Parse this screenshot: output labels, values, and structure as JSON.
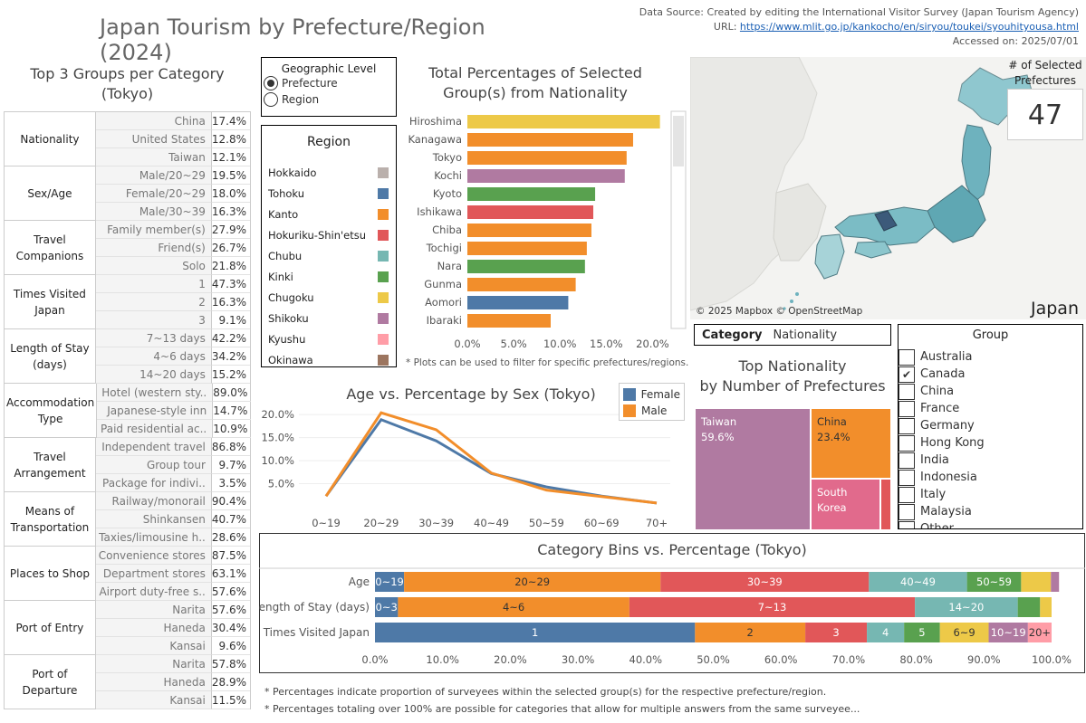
{
  "header": {
    "title": "Japan Tourism by Prefecture/Region (2024)",
    "source_line": "Data Source: Created by editing the International Visitor Survey (Japan Tourism Agency)",
    "url_label": "URL: ",
    "url": "https://www.mlit.go.jp/kankocho/en/siryou/toukei/syouhityousa.html",
    "accessed": "Accessed on: 2025/07/01"
  },
  "top3": {
    "title": "Top 3 Groups per Category",
    "subtitle": "(Tokyo)",
    "groups": [
      {
        "label": "Nationality",
        "rows": [
          {
            "name": "China",
            "value": "17.4%"
          },
          {
            "name": "United States",
            "value": "12.8%"
          },
          {
            "name": "Taiwan",
            "value": "12.1%"
          }
        ]
      },
      {
        "label": "Sex/Age",
        "rows": [
          {
            "name": "Male/20~29",
            "value": "19.5%"
          },
          {
            "name": "Female/20~29",
            "value": "18.0%"
          },
          {
            "name": "Male/30~39",
            "value": "16.3%"
          }
        ]
      },
      {
        "label": "Travel Companions",
        "rows": [
          {
            "name": "Family member(s)",
            "value": "27.9%"
          },
          {
            "name": "Friend(s)",
            "value": "26.7%"
          },
          {
            "name": "Solo",
            "value": "21.8%"
          }
        ]
      },
      {
        "label": "Times Visited Japan",
        "rows": [
          {
            "name": "1",
            "value": "47.3%"
          },
          {
            "name": "2",
            "value": "16.3%"
          },
          {
            "name": "3",
            "value": "9.1%"
          }
        ]
      },
      {
        "label": "Length of Stay (days)",
        "rows": [
          {
            "name": "7~13 days",
            "value": "42.2%"
          },
          {
            "name": "4~6 days",
            "value": "34.2%"
          },
          {
            "name": "14~20 days",
            "value": "15.2%"
          }
        ]
      },
      {
        "label": "Accommodation Type",
        "rows": [
          {
            "name": "Hotel (western sty..",
            "value": "89.0%"
          },
          {
            "name": "Japanese-style inn",
            "value": "14.7%"
          },
          {
            "name": "Paid residential ac..",
            "value": "10.9%"
          }
        ]
      },
      {
        "label": "Travel Arrangement",
        "rows": [
          {
            "name": "Independent travel",
            "value": "86.8%"
          },
          {
            "name": "Group tour",
            "value": "9.7%"
          },
          {
            "name": "Package for indivi..",
            "value": "3.5%"
          }
        ]
      },
      {
        "label": "Means of Transportation",
        "rows": [
          {
            "name": "Railway/monorail",
            "value": "90.4%"
          },
          {
            "name": "Shinkansen",
            "value": "40.7%"
          },
          {
            "name": "Taxies/limousine h..",
            "value": "28.6%"
          }
        ]
      },
      {
        "label": "Places to Shop",
        "rows": [
          {
            "name": "Convenience stores",
            "value": "87.5%"
          },
          {
            "name": "Department stores",
            "value": "63.1%"
          },
          {
            "name": "Airport duty-free s..",
            "value": "57.6%"
          }
        ]
      },
      {
        "label": "Port of Entry",
        "rows": [
          {
            "name": "Narita",
            "value": "57.6%"
          },
          {
            "name": "Haneda",
            "value": "30.4%"
          },
          {
            "name": "Kansai",
            "value": "9.6%"
          }
        ]
      },
      {
        "label": "Port of Departure",
        "rows": [
          {
            "name": "Narita",
            "value": "57.8%"
          },
          {
            "name": "Haneda",
            "value": "28.9%"
          },
          {
            "name": "Kansai",
            "value": "11.5%"
          }
        ]
      }
    ]
  },
  "geo_level": {
    "title": "Geographic Level",
    "options": [
      "Prefecture",
      "Region"
    ],
    "selected": "Prefecture"
  },
  "region_legend": {
    "title": "Region",
    "items": [
      {
        "name": "Hokkaido",
        "color": "#bab0ac"
      },
      {
        "name": "Tohoku",
        "color": "#4e79a7"
      },
      {
        "name": "Kanto",
        "color": "#f28e2b"
      },
      {
        "name": "Hokuriku-Shin'etsu",
        "color": "#e15759"
      },
      {
        "name": "Chubu",
        "color": "#76b7b2"
      },
      {
        "name": "Kinki",
        "color": "#59a14f"
      },
      {
        "name": "Chugoku",
        "color": "#edc948"
      },
      {
        "name": "Shikoku",
        "color": "#b07aa1"
      },
      {
        "name": "Kyushu",
        "color": "#ff9da7"
      },
      {
        "name": "Okinawa",
        "color": "#9c755f"
      }
    ]
  },
  "bar_section": {
    "title_line1": "Total Percentages of Selected",
    "title_line2": "Group(s) from Nationality",
    "note": "* Plots can be used to filter for specific prefectures/regions."
  },
  "map": {
    "attribution": "© 2025 Mapbox © OpenStreetMap",
    "label": "Japan",
    "selected_title": "# of Selected Prefectures",
    "selected_count": "47"
  },
  "category": {
    "label": "Category",
    "value": "Nationality"
  },
  "treemap": {
    "title_line1": "Top Nationality",
    "title_line2": "by Number of Prefectures",
    "items": [
      {
        "name": "Taiwan",
        "value": "59.6%",
        "color": "#b07aa1"
      },
      {
        "name": "China",
        "value": "23.4%",
        "color": "#f28e2b"
      },
      {
        "name": "South Korea",
        "value": "",
        "color": "#e16a8c"
      }
    ]
  },
  "group_filter": {
    "title": "Group",
    "items": [
      {
        "name": "Australia",
        "checked": false
      },
      {
        "name": "Canada",
        "checked": true
      },
      {
        "name": "China",
        "checked": false
      },
      {
        "name": "France",
        "checked": false
      },
      {
        "name": "Germany",
        "checked": false
      },
      {
        "name": "Hong Kong",
        "checked": false
      },
      {
        "name": "India",
        "checked": false
      },
      {
        "name": "Indonesia",
        "checked": false
      },
      {
        "name": "Italy",
        "checked": false
      },
      {
        "name": "Malaysia",
        "checked": false
      },
      {
        "name": "Other",
        "checked": false
      }
    ]
  },
  "line_section": {
    "title": "Age vs. Percentage by Sex (Tokyo)"
  },
  "bins_section": {
    "title": "Category Bins vs. Percentage (Tokyo)"
  },
  "footnotes": [
    "* Percentages indicate proportion of surveyees within the selected group(s) for the respective prefecture/region.",
    "* Percentages totaling over 100% are possible for categories that allow for multiple answers from the same surveyee..."
  ],
  "chart_data": [
    {
      "type": "bar",
      "orientation": "horizontal",
      "categories": [
        "Hiroshima",
        "Kanagawa",
        "Tokyo",
        "Kochi",
        "Kyoto",
        "Ishikawa",
        "Chiba",
        "Tochigi",
        "Nara",
        "Gunma",
        "Aomori",
        "Ibaraki"
      ],
      "values": [
        20.8,
        17.9,
        17.2,
        17.0,
        13.8,
        13.6,
        13.4,
        12.9,
        12.7,
        11.7,
        10.9,
        9.0
      ],
      "regions": [
        "Chugoku",
        "Kanto",
        "Kanto",
        "Shikoku",
        "Kinki",
        "Hokuriku-Shin'etsu",
        "Kanto",
        "Kanto",
        "Kinki",
        "Kanto",
        "Tohoku",
        "Kanto"
      ],
      "x_ticks": [
        "0.0%",
        "5.0%",
        "10.0%",
        "15.0%",
        "20.0%"
      ],
      "xlim": [
        0,
        22.5
      ]
    },
    {
      "type": "line",
      "categories": [
        "0~19",
        "20~29",
        "30~39",
        "40~49",
        "50~59",
        "60~69",
        "70+"
      ],
      "series": [
        {
          "name": "Female",
          "color": "#4e79a7",
          "values": [
            2.3,
            18.9,
            14.3,
            7.2,
            4.3,
            2.3,
            0.8
          ]
        },
        {
          "name": "Male",
          "color": "#f28e2b",
          "values": [
            2.3,
            20.4,
            16.7,
            7.3,
            3.6,
            2.2,
            0.8
          ]
        }
      ],
      "y_ticks": [
        "5.0%",
        "10.0%",
        "15.0%",
        "20.0%"
      ],
      "ylim": [
        0,
        22
      ]
    },
    {
      "type": "bar",
      "orientation": "horizontal-stacked",
      "x_ticks": [
        "0.0%",
        "10.0%",
        "20.0%",
        "30.0%",
        "40.0%",
        "50.0%",
        "60.0%",
        "70.0%",
        "80.0%",
        "90.0%",
        "100.0%"
      ],
      "xlim": [
        0,
        100
      ],
      "rows": [
        {
          "name": "Age",
          "segments": [
            {
              "label": "0~19",
              "value": 4.3,
              "color": "#4e79a7"
            },
            {
              "label": "20~29",
              "value": 37.9,
              "color": "#f28e2b"
            },
            {
              "label": "30~39",
              "value": 30.8,
              "color": "#e15759"
            },
            {
              "label": "40~49",
              "value": 14.5,
              "color": "#76b7b2"
            },
            {
              "label": "50~59",
              "value": 8.0,
              "color": "#59a14f"
            },
            {
              "label": "",
              "value": 4.4,
              "color": "#edc948"
            },
            {
              "label": "",
              "value": 1.2,
              "color": "#b07aa1"
            }
          ]
        },
        {
          "name": "Length of Stay (days)",
          "segments": [
            {
              "label": "0~3",
              "value": 3.4,
              "color": "#4e79a7"
            },
            {
              "label": "4~6",
              "value": 34.2,
              "color": "#f28e2b"
            },
            {
              "label": "7~13",
              "value": 42.2,
              "color": "#e15759"
            },
            {
              "label": "14~20",
              "value": 15.2,
              "color": "#76b7b2"
            },
            {
              "label": "",
              "value": 3.3,
              "color": "#59a14f"
            },
            {
              "label": "",
              "value": 1.7,
              "color": "#edc948"
            }
          ]
        },
        {
          "name": "Times Visited Japan",
          "segments": [
            {
              "label": "1",
              "value": 47.3,
              "color": "#4e79a7"
            },
            {
              "label": "2",
              "value": 16.3,
              "color": "#f28e2b"
            },
            {
              "label": "3",
              "value": 9.1,
              "color": "#e15759"
            },
            {
              "label": "4",
              "value": 5.5,
              "color": "#76b7b2"
            },
            {
              "label": "5",
              "value": 5.3,
              "color": "#59a14f"
            },
            {
              "label": "6~9",
              "value": 7.2,
              "color": "#edc948"
            },
            {
              "label": "10~19",
              "value": 5.8,
              "color": "#b07aa1"
            },
            {
              "label": "20+",
              "value": 3.5,
              "color": "#ff9da7"
            }
          ]
        }
      ]
    }
  ]
}
